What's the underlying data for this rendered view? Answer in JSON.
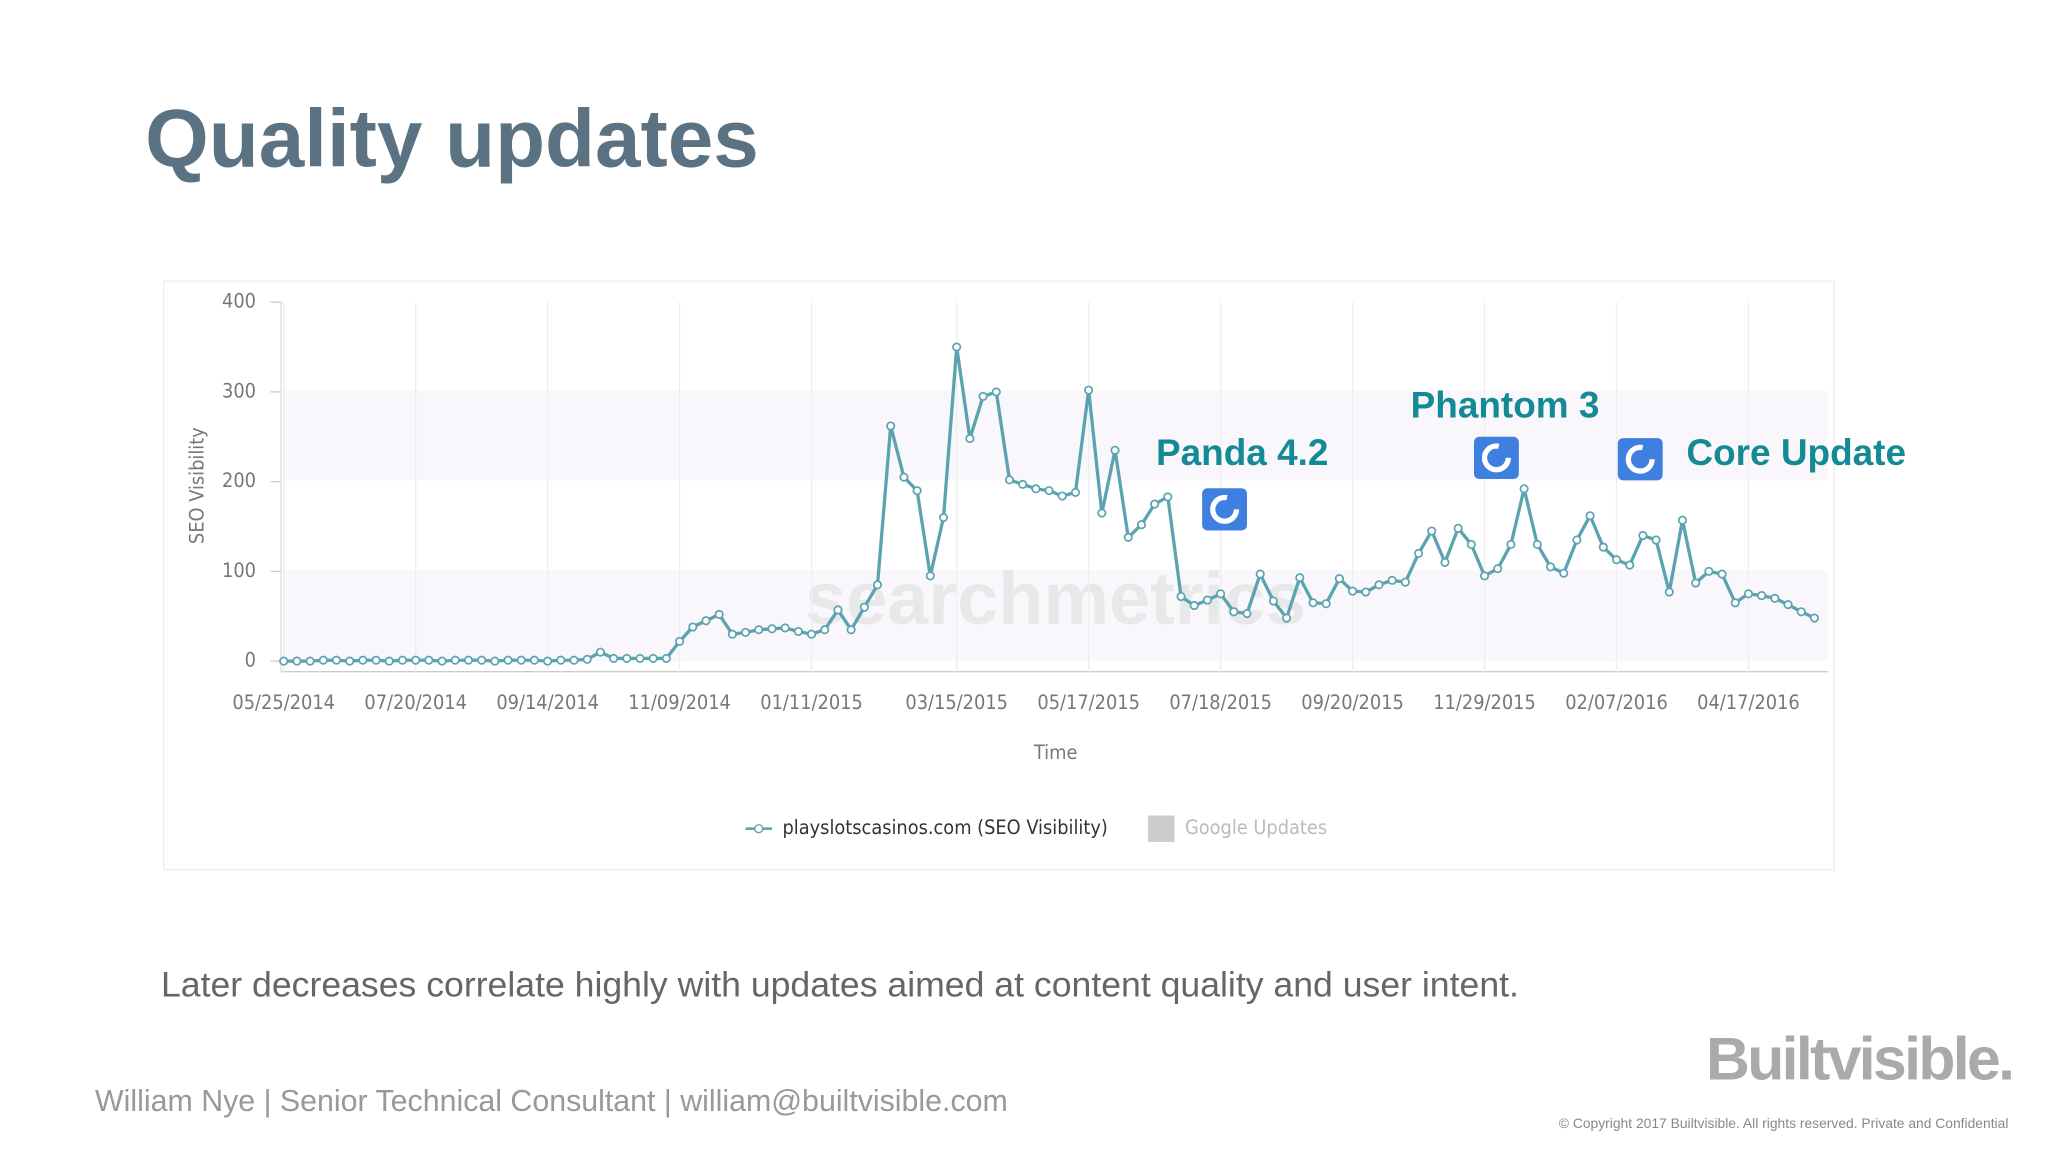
{
  "slide_title": "Quality updates",
  "caption": "Later decreases correlate highly with updates aimed at content quality and user intent.",
  "footer": "William Nye |  Senior Technical Consultant |  william@builtvisible.com",
  "logo": "Builtvisible.",
  "copyright": "© Copyright 2017 Builtvisible. All rights reserved. Private and Confidential",
  "chart_data": {
    "type": "line",
    "y_label": "SEO Visibility",
    "x_label": "Time",
    "watermark": "searchmetrics",
    "ylim": [
      0,
      400
    ],
    "yticks": [
      0,
      100,
      200,
      300,
      400
    ],
    "grid": true,
    "categories": [
      "05/25/2014",
      null,
      null,
      null,
      null,
      null,
      null,
      null,
      null,
      null,
      "07/20/2014",
      null,
      null,
      null,
      null,
      null,
      null,
      null,
      null,
      null,
      "09/14/2014",
      null,
      null,
      null,
      null,
      null,
      null,
      null,
      null,
      null,
      "11/09/2014",
      null,
      null,
      null,
      null,
      null,
      null,
      null,
      null,
      null,
      "01/11/2015",
      null,
      null,
      null,
      null,
      null,
      null,
      null,
      null,
      null,
      null,
      "03/15/2015",
      null,
      null,
      null,
      null,
      null,
      null,
      null,
      null,
      null,
      "05/17/2015",
      null,
      null,
      null,
      null,
      null,
      null,
      null,
      null,
      null,
      "07/18/2015",
      null,
      null,
      null,
      null,
      null,
      null,
      null,
      null,
      null,
      "09/20/2015",
      null,
      null,
      null,
      null,
      null,
      null,
      null,
      null,
      null,
      "11/29/2015",
      null,
      null,
      null,
      null,
      null,
      null,
      null,
      null,
      null,
      "02/07/2016",
      null,
      null,
      null,
      null,
      null,
      null,
      null,
      null,
      null,
      "04/17/2016",
      null,
      null,
      null,
      null,
      null
    ],
    "series": [
      {
        "name": "playslotscasinos.com (SEO Visibility)",
        "color": "#5ba3b0",
        "values": [
          0,
          0,
          0,
          1,
          1,
          0,
          1,
          1,
          0,
          1,
          1,
          1,
          0,
          1,
          1,
          1,
          0,
          1,
          1,
          1,
          0,
          1,
          1,
          2,
          10,
          3,
          3,
          3,
          3,
          3,
          22,
          38,
          45,
          52,
          30,
          32,
          35,
          36,
          37,
          33,
          30,
          35,
          57,
          35,
          60,
          85,
          262,
          205,
          190,
          95,
          160,
          350,
          248,
          295,
          300,
          202,
          197,
          192,
          190,
          184,
          188,
          302,
          165,
          235,
          138,
          152,
          175,
          183,
          72,
          62,
          68,
          75,
          55,
          53,
          97,
          67,
          48,
          93,
          65,
          64,
          92,
          78,
          77,
          85,
          90,
          88,
          120,
          145,
          110,
          148,
          130,
          95,
          103,
          130,
          192,
          130,
          105,
          98,
          135,
          162,
          127,
          113,
          107,
          140,
          135,
          77,
          157,
          87,
          100,
          97,
          65,
          75,
          73,
          70,
          63,
          55,
          48
        ]
      }
    ],
    "legend_extra": "Google Updates",
    "annotations": [
      "Panda 4.2",
      "Phantom 3",
      "Core Update"
    ]
  }
}
